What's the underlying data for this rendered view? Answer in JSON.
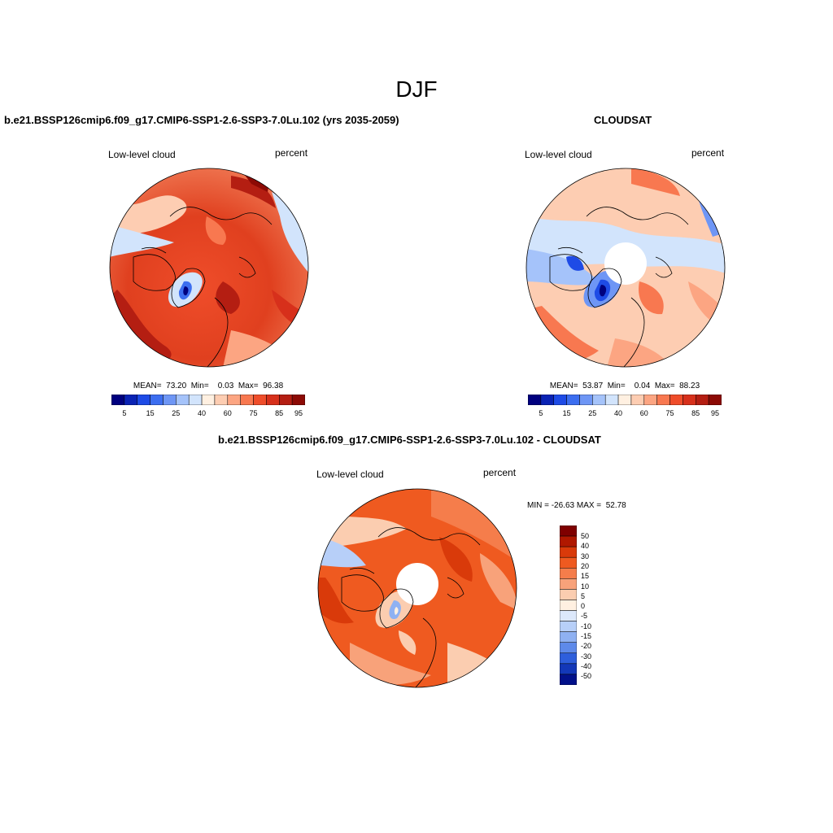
{
  "page": {
    "title": "DJF"
  },
  "panels": [
    {
      "title": "b.e21.BSSP126cmip6.f09_g17.CMIP6-SSP1-2.6-SSP3-7.0Lu.102 (yrs 2035-2059)",
      "variable": "Low-level cloud",
      "units": "percent",
      "stats": "MEAN=  73.20  Min=    0.03  Max=  96.38",
      "colorbar_ticks": [
        "5",
        "15",
        "25",
        "40",
        "60",
        "75",
        "85",
        "95"
      ]
    },
    {
      "title": "CLOUDSAT",
      "variable": "Low-level cloud",
      "units": "percent",
      "stats": "MEAN=  53.87  Min=    0.04  Max=  88.23",
      "colorbar_ticks": [
        "5",
        "15",
        "25",
        "40",
        "60",
        "75",
        "85",
        "95"
      ]
    },
    {
      "title": "b.e21.BSSP126cmip6.f09_g17.CMIP6-SSP1-2.6-SSP3-7.0Lu.102 - CLOUDSAT",
      "variable": "Low-level cloud",
      "units": "percent",
      "stats": "MIN = -26.63 MAX =  52.78",
      "colorbar_ticks": [
        "50",
        "40",
        "30",
        "20",
        "15",
        "10",
        "5",
        "0",
        "-5",
        "-10",
        "-15",
        "-20",
        "-30",
        "-40",
        "-50"
      ]
    }
  ],
  "colors": {
    "abs_scale": [
      "#00007f",
      "#0a23b4",
      "#1e4be6",
      "#3c6ef0",
      "#6e96f5",
      "#a5c3fa",
      "#d2e4fc",
      "#fff0e1",
      "#fdcdb2",
      "#fca582",
      "#f87850",
      "#ef4d2a",
      "#d7301b",
      "#b41e12",
      "#8c0a05"
    ],
    "diff_scale": [
      "#7f0000",
      "#b01800",
      "#d93a0a",
      "#ef5a20",
      "#f57d4b",
      "#f8a27a",
      "#fbcdb0",
      "#fff0e1",
      "#dce8fb",
      "#b7cff8",
      "#8fb1f2",
      "#5e8aea",
      "#2e5fdc",
      "#1338b8",
      "#02118a"
    ]
  }
}
